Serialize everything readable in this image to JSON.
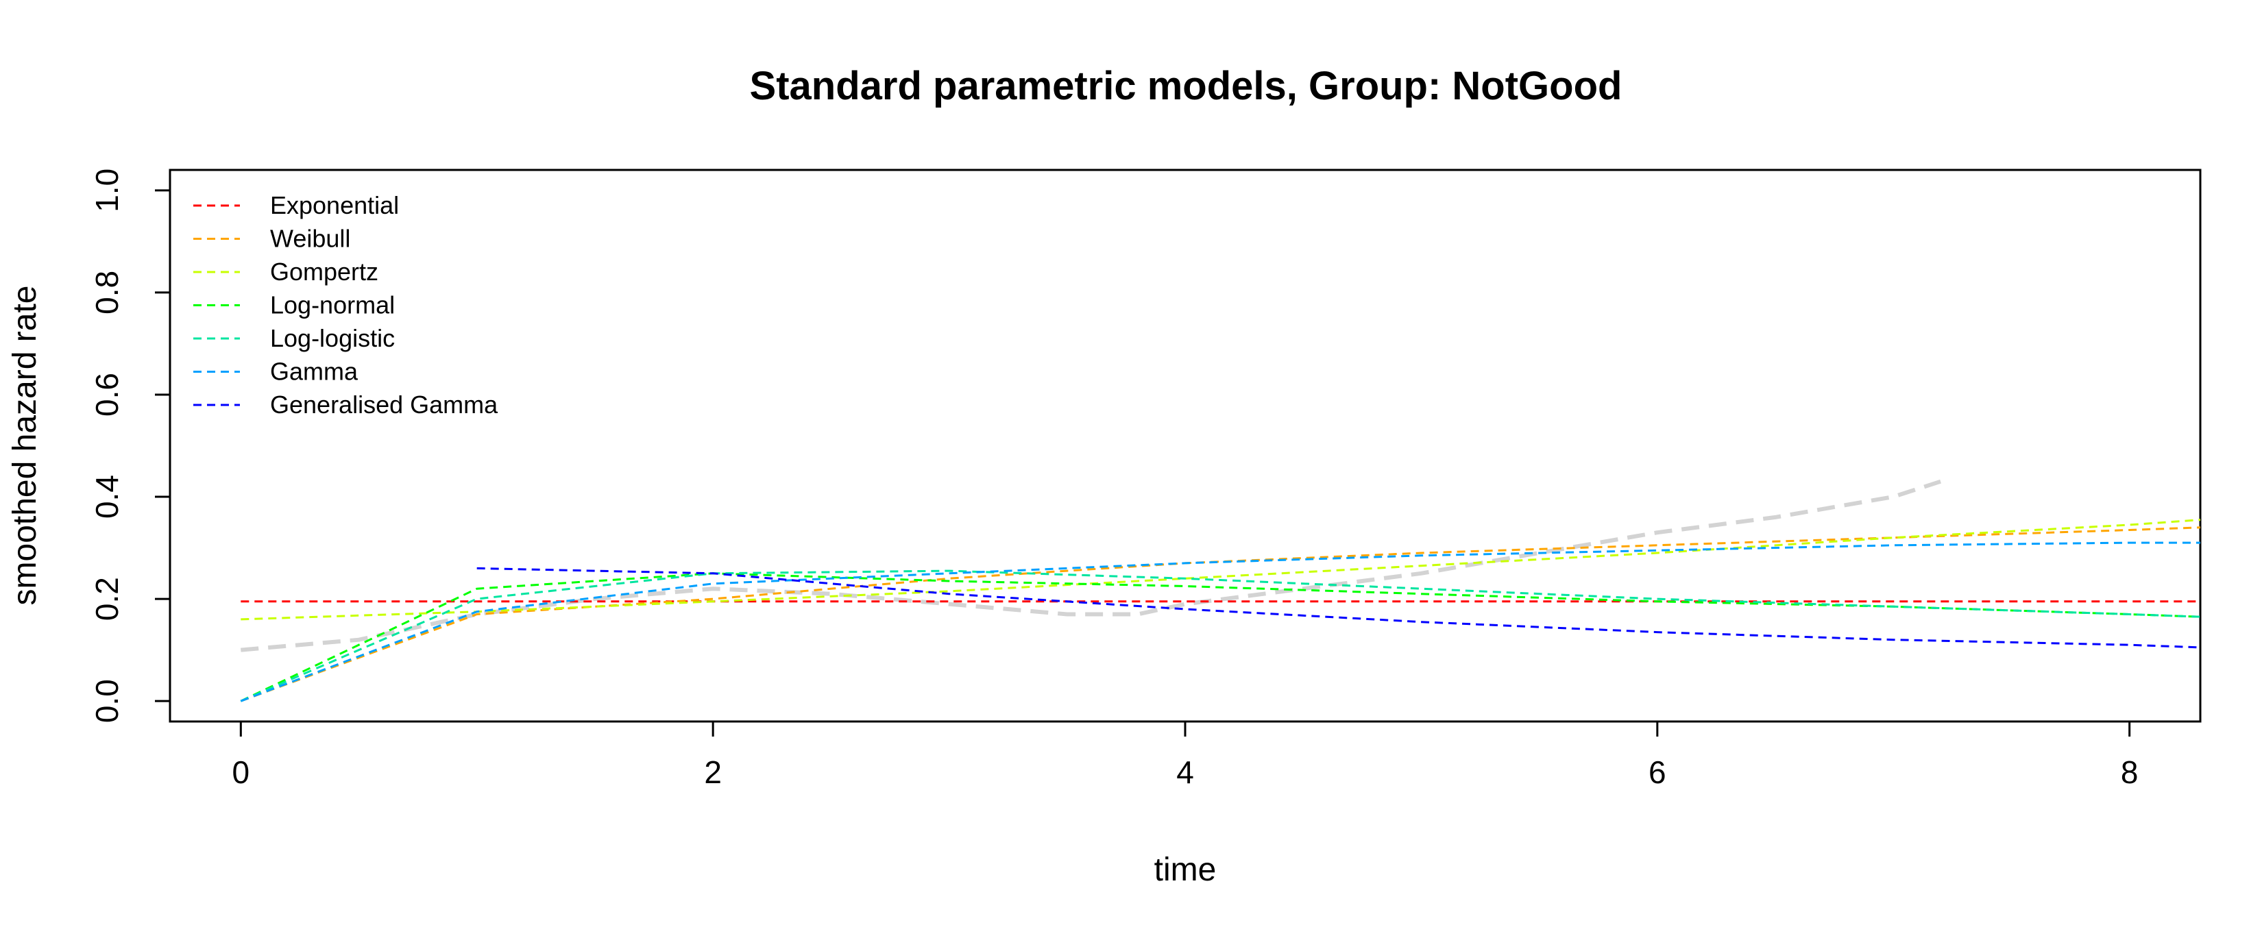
{
  "chart_data": {
    "type": "line",
    "title": "Standard parametric models, Group: NotGood",
    "xlabel": "time",
    "ylabel": "smoothed hazard rate",
    "xlim": [
      -0.3,
      8.3
    ],
    "ylim": [
      -0.04,
      1.04
    ],
    "x_ticks": [
      0,
      2,
      4,
      6,
      8
    ],
    "y_ticks": [
      0.0,
      0.2,
      0.4,
      0.6,
      0.8,
      1.0
    ],
    "x_tick_labels": [
      "0",
      "2",
      "4",
      "6",
      "8"
    ],
    "y_tick_labels": [
      "0.0",
      "0.2",
      "0.4",
      "0.6",
      "0.8",
      "1.0"
    ],
    "grid": false,
    "legend_position": "top-left",
    "empirical": {
      "name": "",
      "color": "#d3d3d3",
      "x": [
        0,
        0.5,
        1.0,
        1.5,
        2.0,
        2.5,
        3.0,
        3.5,
        3.8,
        4.0,
        4.5,
        5.0,
        5.5,
        6.0,
        6.5,
        7.0,
        7.2
      ],
      "y": [
        0.1,
        0.12,
        0.17,
        0.2,
        0.22,
        0.21,
        0.19,
        0.17,
        0.17,
        0.19,
        0.22,
        0.25,
        0.29,
        0.33,
        0.36,
        0.4,
        0.43
      ]
    },
    "series": [
      {
        "name": "Exponential",
        "color": "#ff0000",
        "x": [
          0,
          1,
          2,
          3,
          4,
          5,
          6,
          7,
          8,
          8.3
        ],
        "y": [
          0.195,
          0.195,
          0.195,
          0.195,
          0.195,
          0.195,
          0.195,
          0.195,
          0.195,
          0.195
        ]
      },
      {
        "name": "Weibull",
        "color": "#ffa500",
        "x": [
          0,
          1,
          2,
          3,
          4,
          5,
          6,
          7,
          8,
          8.3
        ],
        "y": [
          0.0,
          0.17,
          0.2,
          0.24,
          0.27,
          0.29,
          0.305,
          0.32,
          0.335,
          0.34
        ]
      },
      {
        "name": "Gompertz",
        "color": "#c8ff00",
        "x": [
          0,
          1,
          2,
          3,
          4,
          5,
          6,
          7,
          8,
          8.3
        ],
        "y": [
          0.16,
          0.175,
          0.195,
          0.215,
          0.24,
          0.265,
          0.29,
          0.32,
          0.345,
          0.355
        ]
      },
      {
        "name": "Log-normal",
        "color": "#00ff00",
        "x": [
          0,
          1,
          2,
          3,
          4,
          5,
          6,
          7,
          8,
          8.3
        ],
        "y": [
          0.0,
          0.22,
          0.25,
          0.235,
          0.225,
          0.21,
          0.195,
          0.185,
          0.17,
          0.165
        ]
      },
      {
        "name": "Log-logistic",
        "color": "#00e5a0",
        "x": [
          0,
          1,
          2,
          3,
          4,
          5,
          6,
          7,
          8,
          8.3
        ],
        "y": [
          0.0,
          0.2,
          0.25,
          0.255,
          0.24,
          0.22,
          0.2,
          0.185,
          0.17,
          0.165
        ]
      },
      {
        "name": "Gamma",
        "color": "#00a0ff",
        "x": [
          0,
          1,
          2,
          3,
          4,
          5,
          6,
          7,
          8,
          8.3
        ],
        "y": [
          0.0,
          0.175,
          0.23,
          0.25,
          0.27,
          0.285,
          0.295,
          0.305,
          0.31,
          0.31
        ]
      },
      {
        "name": "Generalised Gamma",
        "color": "#0000ff",
        "x": [
          1,
          2,
          3,
          4,
          5,
          6,
          7,
          8,
          8.3
        ],
        "y": [
          0.26,
          0.25,
          0.21,
          0.18,
          0.155,
          0.135,
          0.12,
          0.11,
          0.105
        ]
      }
    ]
  }
}
